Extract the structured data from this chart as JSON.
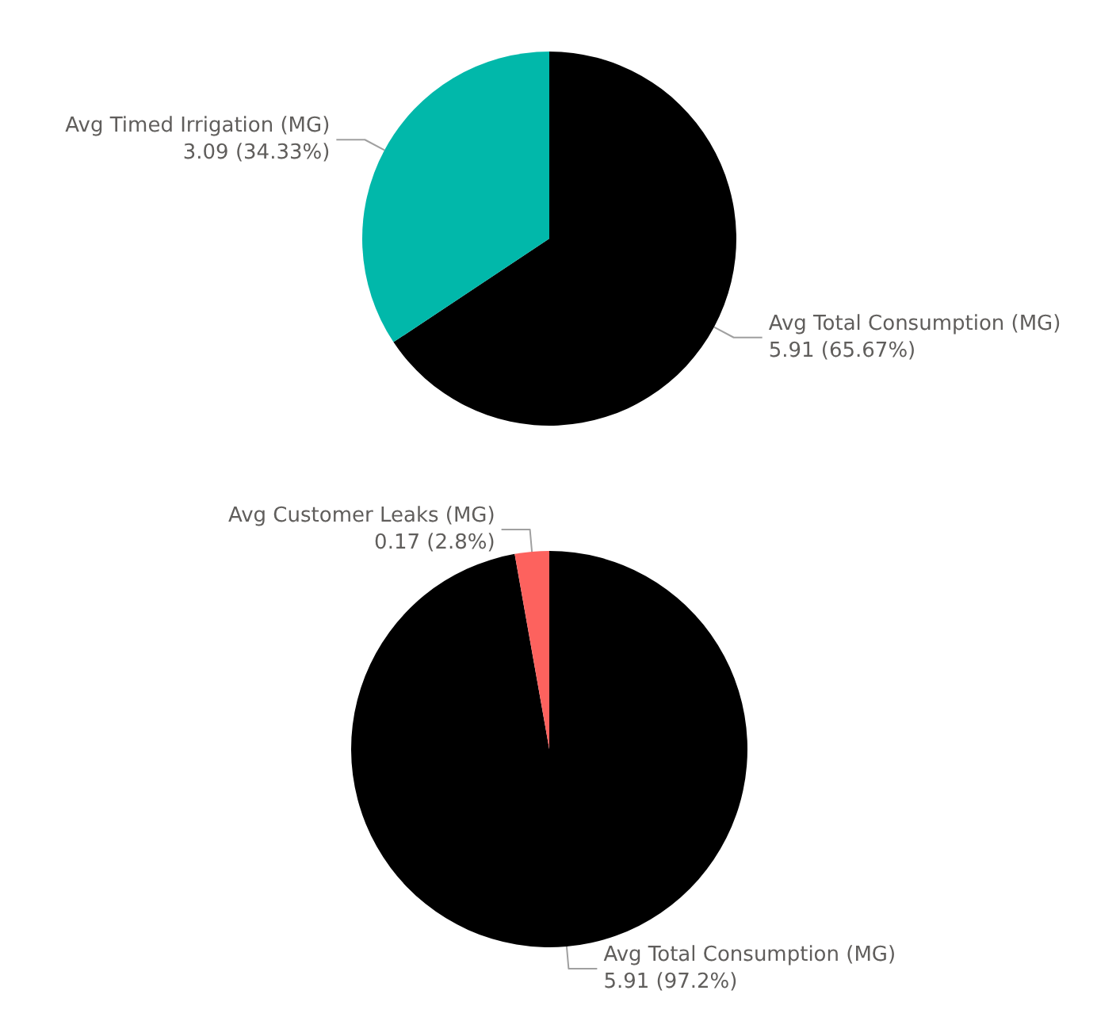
{
  "chart_data": [
    {
      "type": "pie",
      "categories": [
        "Avg Total Consumption (MG)",
        "Avg Timed Irrigation (MG)"
      ],
      "values": [
        5.91,
        3.09
      ],
      "colors": [
        "#000000",
        "#01b8aa"
      ],
      "value_labels": [
        "5.91 (65.67%)",
        "3.09 (34.33%)"
      ]
    },
    {
      "type": "pie",
      "categories": [
        "Avg Total Consumption (MG)",
        "Avg Customer Leaks (MG)"
      ],
      "values": [
        5.91,
        0.17
      ],
      "colors": [
        "#000000",
        "#fd625e"
      ],
      "value_labels": [
        "5.91 (97.2%)",
        "0.17 (2.8%)"
      ]
    }
  ]
}
